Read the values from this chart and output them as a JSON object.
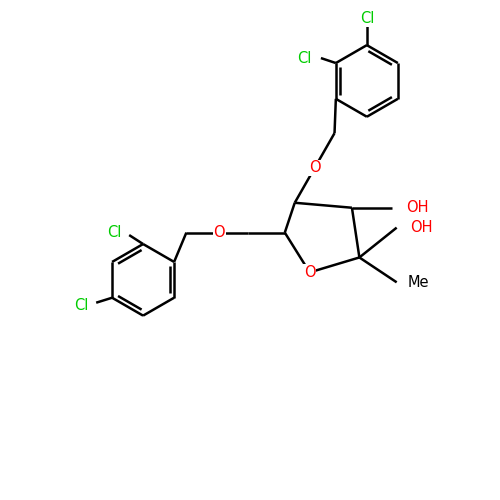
{
  "background_color": "#ffffff",
  "bond_color": "#000000",
  "oxygen_color": "#ff0000",
  "chlorine_color": "#00cc00",
  "line_width": 1.8,
  "font_size": 10.5,
  "figsize": [
    5.0,
    5.0
  ],
  "dpi": 100,
  "xlim": [
    0,
    10
  ],
  "ylim": [
    0,
    10
  ]
}
